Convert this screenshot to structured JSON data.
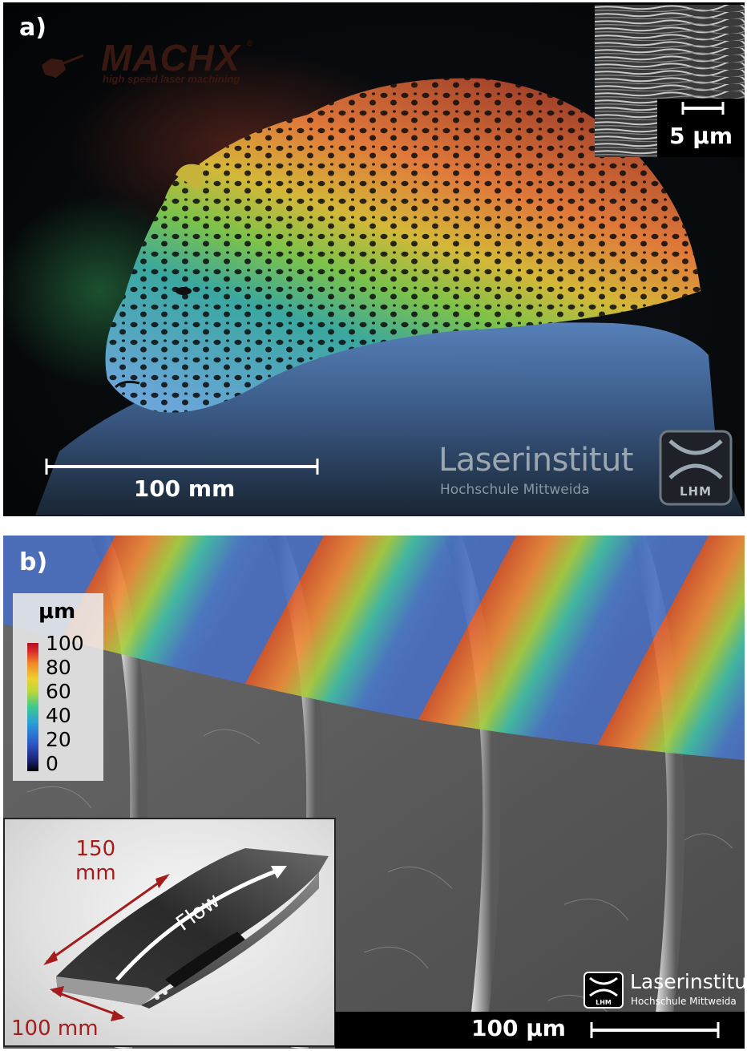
{
  "panel_a": {
    "label": "a)",
    "logo": {
      "title": "MACHX",
      "registered": "®",
      "tagline": "high speed laser machining"
    },
    "inset_scale": "5 μm",
    "scale_bar": "100 mm",
    "institute": {
      "name": "Laserinstitut",
      "subtitle": "Hochschule Mittweida",
      "badge": "LHM"
    }
  },
  "panel_b": {
    "label": "b)",
    "colorbar": {
      "unit": "μm",
      "ticks": [
        "100",
        "80",
        "60",
        "40",
        "20",
        "0"
      ]
    },
    "inset": {
      "flow_label": "Flow",
      "dim_length": "150\nmm",
      "dim_width": "100 mm"
    },
    "scale_bar": "100 μm",
    "institute": {
      "name": "Laserinstitut",
      "subtitle": "Hochschule Mittweida",
      "badge": "LHM"
    }
  },
  "colors": {
    "dimension_red": "#a51c1c",
    "logo_brown": "#3a1812",
    "institute_gray": "#9aa6b0"
  }
}
